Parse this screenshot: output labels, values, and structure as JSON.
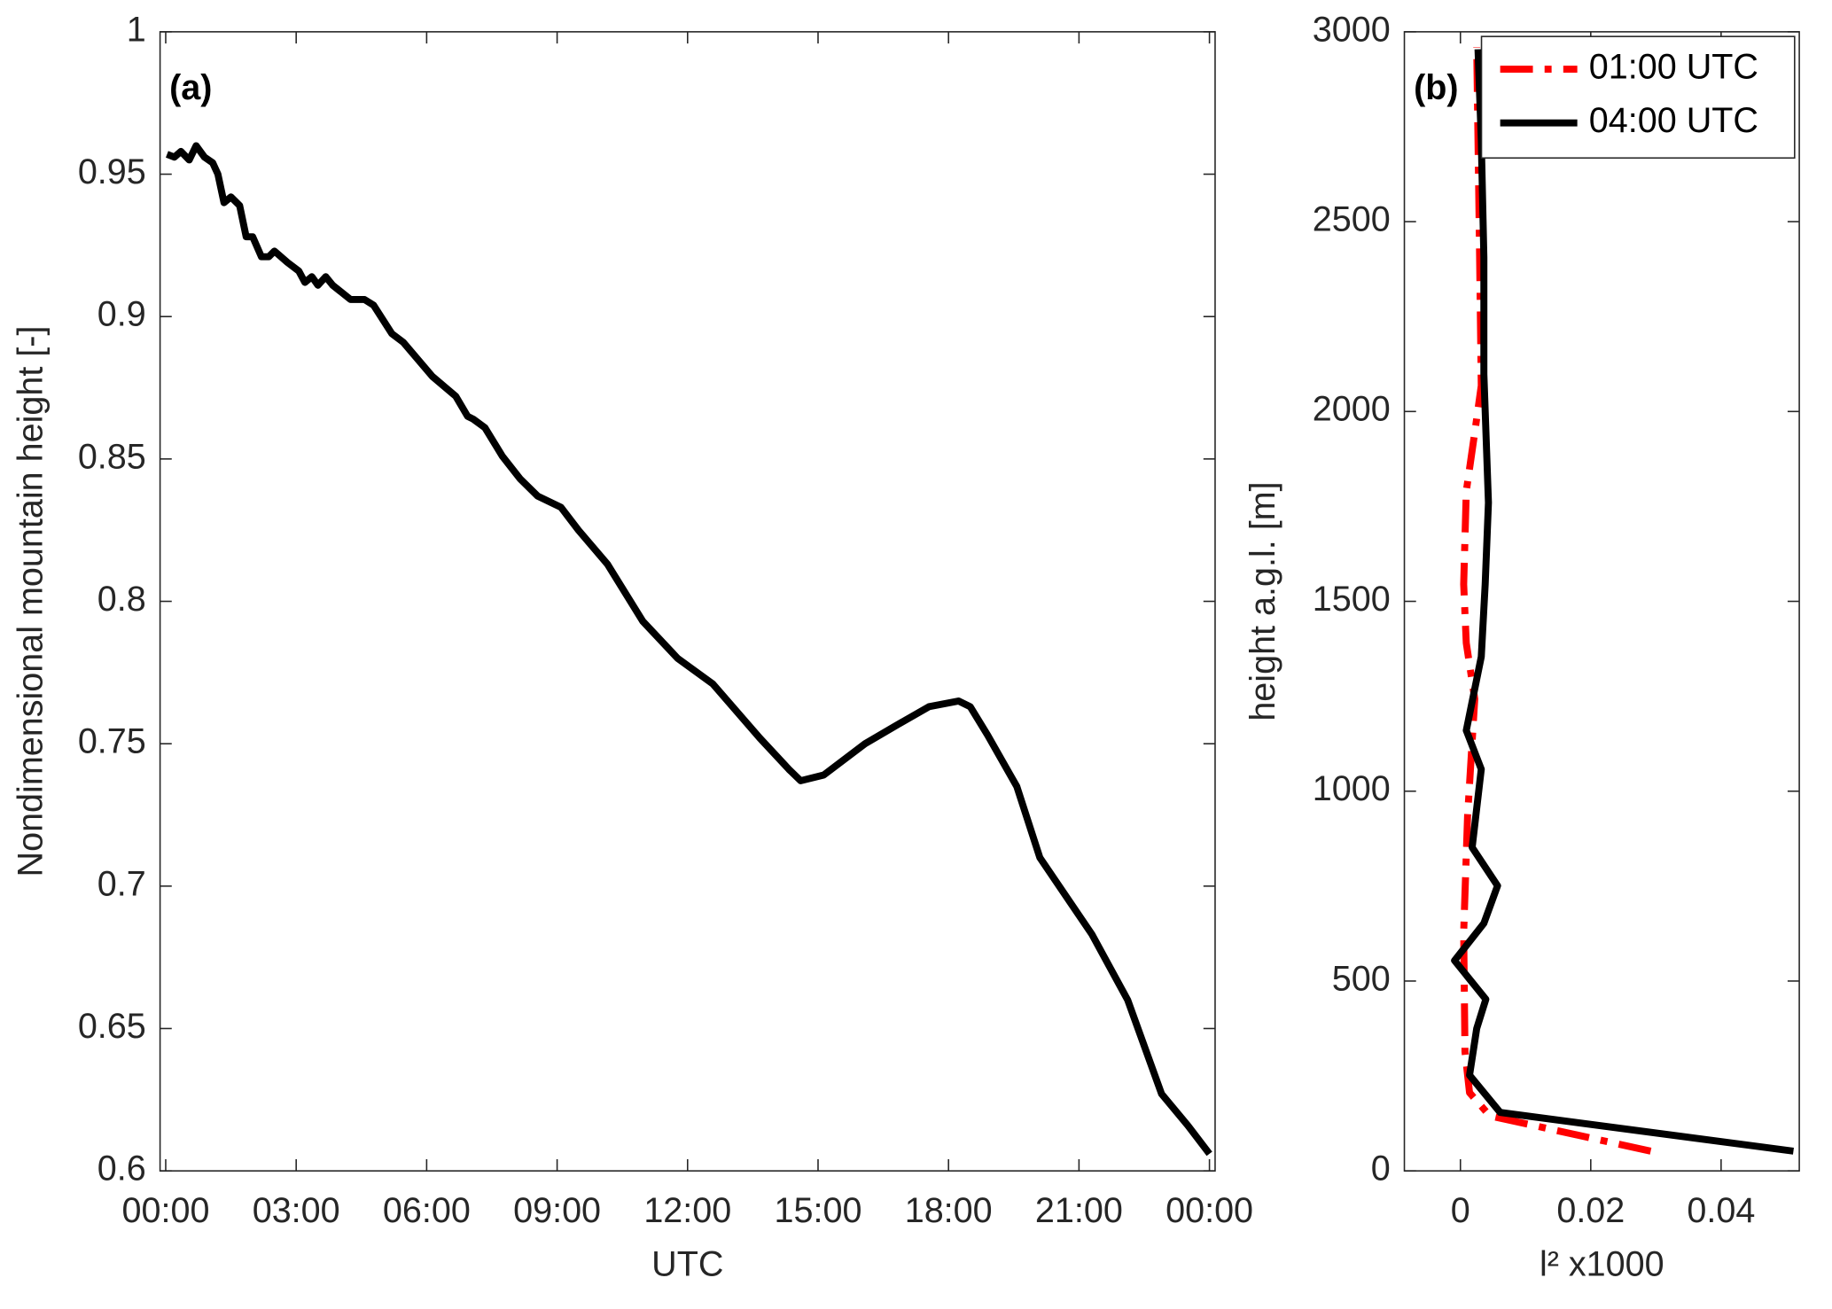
{
  "chart_data": [
    {
      "type": "line",
      "annotation": "(a)",
      "xlabel": "UTC",
      "ylabel": "Nondimensional mountain height [-]",
      "x": [
        0.03,
        0.2,
        0.35,
        0.54,
        0.7,
        0.89,
        1.08,
        1.2,
        1.34,
        1.5,
        1.7,
        1.85,
        2.0,
        2.2,
        2.37,
        2.5,
        2.8,
        3.06,
        3.2,
        3.36,
        3.5,
        3.68,
        3.84,
        4.25,
        4.57,
        4.78,
        5.2,
        5.46,
        6.13,
        6.67,
        6.94,
        7.07,
        7.34,
        7.74,
        8.15,
        8.55,
        9.09,
        9.49,
        10.16,
        10.97,
        11.77,
        12.58,
        13.66,
        14.33,
        14.6,
        15.13,
        16.08,
        16.75,
        17.55,
        18.23,
        18.5,
        18.9,
        19.57,
        20.1,
        21.3,
        22.12,
        22.9,
        23.5,
        24.0
      ],
      "values": [
        0.957,
        0.956,
        0.958,
        0.955,
        0.96,
        0.956,
        0.954,
        0.95,
        0.94,
        0.942,
        0.939,
        0.928,
        0.928,
        0.921,
        0.921,
        0.923,
        0.919,
        0.916,
        0.912,
        0.914,
        0.911,
        0.914,
        0.911,
        0.906,
        0.906,
        0.904,
        0.894,
        0.891,
        0.879,
        0.872,
        0.865,
        0.864,
        0.861,
        0.851,
        0.843,
        0.837,
        0.833,
        0.825,
        0.813,
        0.793,
        0.78,
        0.771,
        0.752,
        0.741,
        0.737,
        0.739,
        0.75,
        0.756,
        0.763,
        0.765,
        0.763,
        0.753,
        0.735,
        0.71,
        0.683,
        0.66,
        0.627,
        0.616,
        0.606
      ],
      "color": "#000000",
      "xlim": [
        -0.13,
        24.13
      ],
      "xticks": [
        {
          "value": 0,
          "label": "00:00"
        },
        {
          "value": 3,
          "label": "03:00"
        },
        {
          "value": 6,
          "label": "06:00"
        },
        {
          "value": 9,
          "label": "09:00"
        },
        {
          "value": 12,
          "label": "12:00"
        },
        {
          "value": 15,
          "label": "15:00"
        },
        {
          "value": 18,
          "label": "18:00"
        },
        {
          "value": 21,
          "label": "21:00"
        },
        {
          "value": 24,
          "label": "00:00"
        }
      ],
      "ylim": [
        0.6,
        1
      ],
      "yticks": [
        0.6,
        0.65,
        0.7,
        0.75,
        0.8,
        0.85,
        0.9,
        0.95,
        1
      ]
    },
    {
      "type": "profile",
      "annotation": "(b)",
      "xlabel": "l² x1000",
      "ylabel": "height a.g.l. [m]",
      "legend": "upper right",
      "series": [
        {
          "name": "01:00 UTC",
          "color": "#ff0000",
          "linestyle": "dashdot",
          "values": [
            0.0292,
            0.0045,
            0.0014,
            0.0007,
            0.0005,
            0.0011,
            0.0022,
            0.0009,
            0.0005,
            0.0009,
            0.0022,
            0.0032,
            0.0029,
            0.0025
          ],
          "heights": [
            52,
            145,
            206,
            314,
            628,
            935,
            1243,
            1390,
            1545,
            1790,
            1945,
            2068,
            2468,
            2960
          ]
        },
        {
          "name": "04:00 UTC",
          "color": "#000000",
          "linestyle": "solid",
          "values": [
            0.0511,
            0.0061,
            0.0014,
            0.0025,
            0.0039,
            -0.0009,
            0.0036,
            0.0057,
            0.0018,
            0.0032,
            0.0009,
            0.0032,
            0.0038,
            0.0043,
            0.0036,
            0.0036,
            0.0032,
            0.0027
          ],
          "heights": [
            52,
            154,
            252,
            375,
            452,
            554,
            652,
            751,
            852,
            1058,
            1160,
            1354,
            1545,
            1760,
            2098,
            2406,
            2714,
            2954
          ]
        }
      ],
      "xlim": [
        -0.0086,
        0.052
      ],
      "xticks": [
        0,
        0.02,
        0.04
      ],
      "ylim": [
        0,
        3000
      ],
      "yticks": [
        0,
        500,
        1000,
        1500,
        2000,
        2500,
        3000
      ]
    }
  ]
}
